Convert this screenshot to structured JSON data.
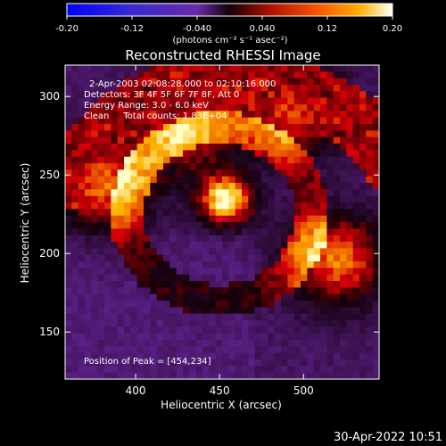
{
  "chart_data": {
    "type": "heatmap",
    "title": "Reconstructed RHESSI Image",
    "xlabel": "Heliocentric X (arcsec)",
    "ylabel": "Heliocentric Y (arcsec)",
    "xlim": [
      358,
      545
    ],
    "ylim": [
      120,
      320
    ],
    "xticks": [
      400,
      450,
      500
    ],
    "yticks": [
      150,
      200,
      250,
      300
    ],
    "colorbar": {
      "range": [
        -0.2,
        0.2
      ],
      "ticks": [
        "-0.20",
        "-0.12",
        "-0.040",
        "0.040",
        "0.12",
        "0.20"
      ],
      "units": "(photons cm⁻² s⁻¹ asec⁻²)",
      "colors": [
        "#0000ff",
        "#6a2aa8",
        "#1a0012",
        "#cc1800",
        "#ff9900",
        "#ffffff"
      ]
    },
    "annotations": [
      "2-Apr-2003 02:08:28.000 to 02:10:16.000",
      "Detectors: 3F 4F 5F 6F 7F 8F, Att 0",
      "Energy Range: 3.0 - 6.0 keV",
      "Clean     Total counts: 1.83E+04"
    ],
    "peak_label": "Position of Peak = [454,234]",
    "sources": [
      {
        "x": 454,
        "y": 234,
        "value": 0.2
      },
      {
        "x": 380,
        "y": 244,
        "value": 0.12
      },
      {
        "x": 520,
        "y": 196,
        "value": 0.13
      },
      {
        "x": 495,
        "y": 290,
        "value": 0.1
      },
      {
        "x": 430,
        "y": 280,
        "value": 0.08
      }
    ]
  },
  "footer": {
    "date": "30-Apr-2022 10:51"
  }
}
